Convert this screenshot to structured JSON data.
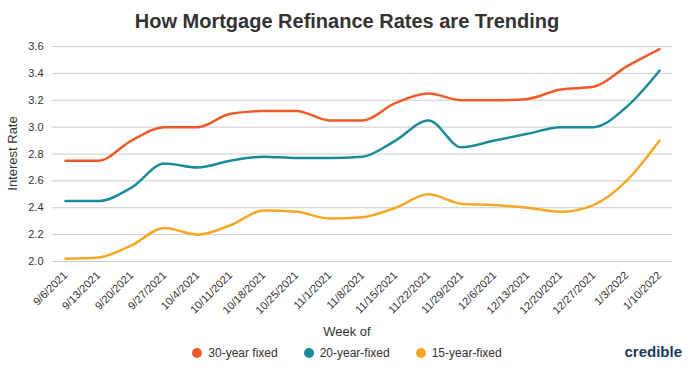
{
  "chart_data": {
    "type": "line",
    "title": "How Mortgage Refinance Rates are Trending",
    "x_label": "Week of",
    "y_label": "Interest Rate",
    "source": "credible",
    "categories": [
      "9/6/2021",
      "9/13/2021",
      "9/20/2021",
      "9/27/2021",
      "10/4/2021",
      "10/11/2021",
      "10/18/2021",
      "10/25/2021",
      "11/1/2021",
      "11/8/2021",
      "11/15/2021",
      "11/22/2021",
      "11/29/2021",
      "12/6/2021",
      "12/13/2021",
      "12/20/2021",
      "12/27/2021",
      "1/3/2022",
      "1/10/2022"
    ],
    "series": [
      {
        "name": "30-year fixed",
        "color": "#f05a28",
        "values": [
          2.75,
          2.75,
          2.9,
          3.0,
          3.0,
          3.1,
          3.12,
          3.12,
          3.05,
          3.05,
          3.18,
          3.25,
          3.2,
          3.2,
          3.21,
          3.28,
          3.3,
          3.45,
          3.58
        ]
      },
      {
        "name": "20-year-fixed",
        "color": "#1b8b9b",
        "values": [
          2.45,
          2.45,
          2.55,
          2.73,
          2.7,
          2.75,
          2.78,
          2.77,
          2.77,
          2.78,
          2.9,
          3.05,
          2.85,
          2.9,
          2.95,
          3.0,
          3.0,
          3.15,
          3.42
        ]
      },
      {
        "name": "15-year-fixed",
        "color": "#f7a823",
        "values": [
          2.02,
          2.03,
          2.12,
          2.25,
          2.2,
          2.27,
          2.38,
          2.37,
          2.32,
          2.33,
          2.4,
          2.5,
          2.43,
          2.42,
          2.4,
          2.37,
          2.42,
          2.6,
          2.9
        ]
      }
    ],
    "ylim": [
      2.0,
      3.6
    ],
    "yticks": [
      {
        "value": 2.0,
        "label": "2.0"
      },
      2.2,
      2.4,
      2.6,
      2.8,
      {
        "value": 3.0,
        "label": "3.0"
      },
      3.2,
      3.4,
      3.6
    ],
    "grid": true,
    "legend": "bottom"
  }
}
